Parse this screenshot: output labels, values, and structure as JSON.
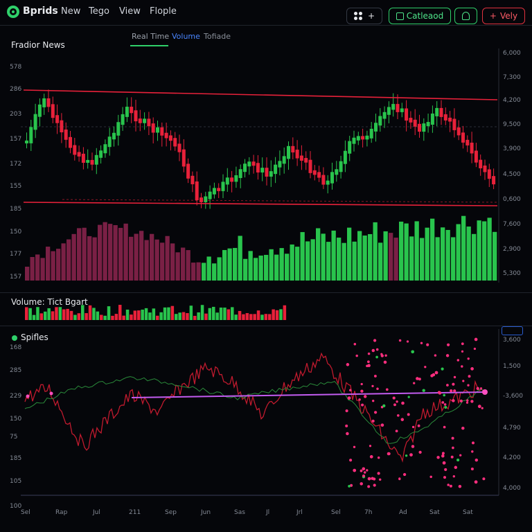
{
  "header": {
    "brand": "Bprids",
    "menu": [
      "New",
      "Tego",
      "View",
      "Flople"
    ],
    "grid_button_plus": "+",
    "calendar_label": "Catleaod",
    "verify_label": "Vely",
    "verify_prefix": "+"
  },
  "tabs": [
    "Real Time",
    "Volume",
    "Tofiade"
  ],
  "panel1": {
    "title": "Fradior News",
    "left_axis": [
      "578",
      "286",
      "203",
      "157",
      "172",
      "155",
      "185",
      "150",
      "177",
      "157"
    ],
    "right_axis": [
      "6,000",
      "7,300",
      "4,200",
      "9,500",
      "3,900",
      "4,500",
      "0,600",
      "7,600",
      "2,900",
      "5,300"
    ]
  },
  "panel2": {
    "title": "Volume: Tict Bgart"
  },
  "panel3": {
    "title": "Spifles",
    "left_axis": [
      "168",
      "285",
      "229",
      "150",
      "75",
      "185",
      "105",
      "100"
    ],
    "right_axis": [
      "3,600",
      "1,500",
      "-3,600",
      "4,790",
      "4,200",
      "4,000"
    ],
    "x_axis": [
      "Sel",
      "Rap",
      "Jul",
      "211",
      "Sep",
      "Jun",
      "Sas",
      "Jl",
      "Jrl",
      "Sel",
      "7h",
      "Ad",
      "Sat",
      "Sat"
    ]
  },
  "colors": {
    "up": "#29c44d",
    "down": "#e8213a",
    "volume_down": "#7a2045",
    "band": "#e8213a",
    "purple_line": "#c35cf0",
    "pink_dot": "#ff2e7e"
  }
}
